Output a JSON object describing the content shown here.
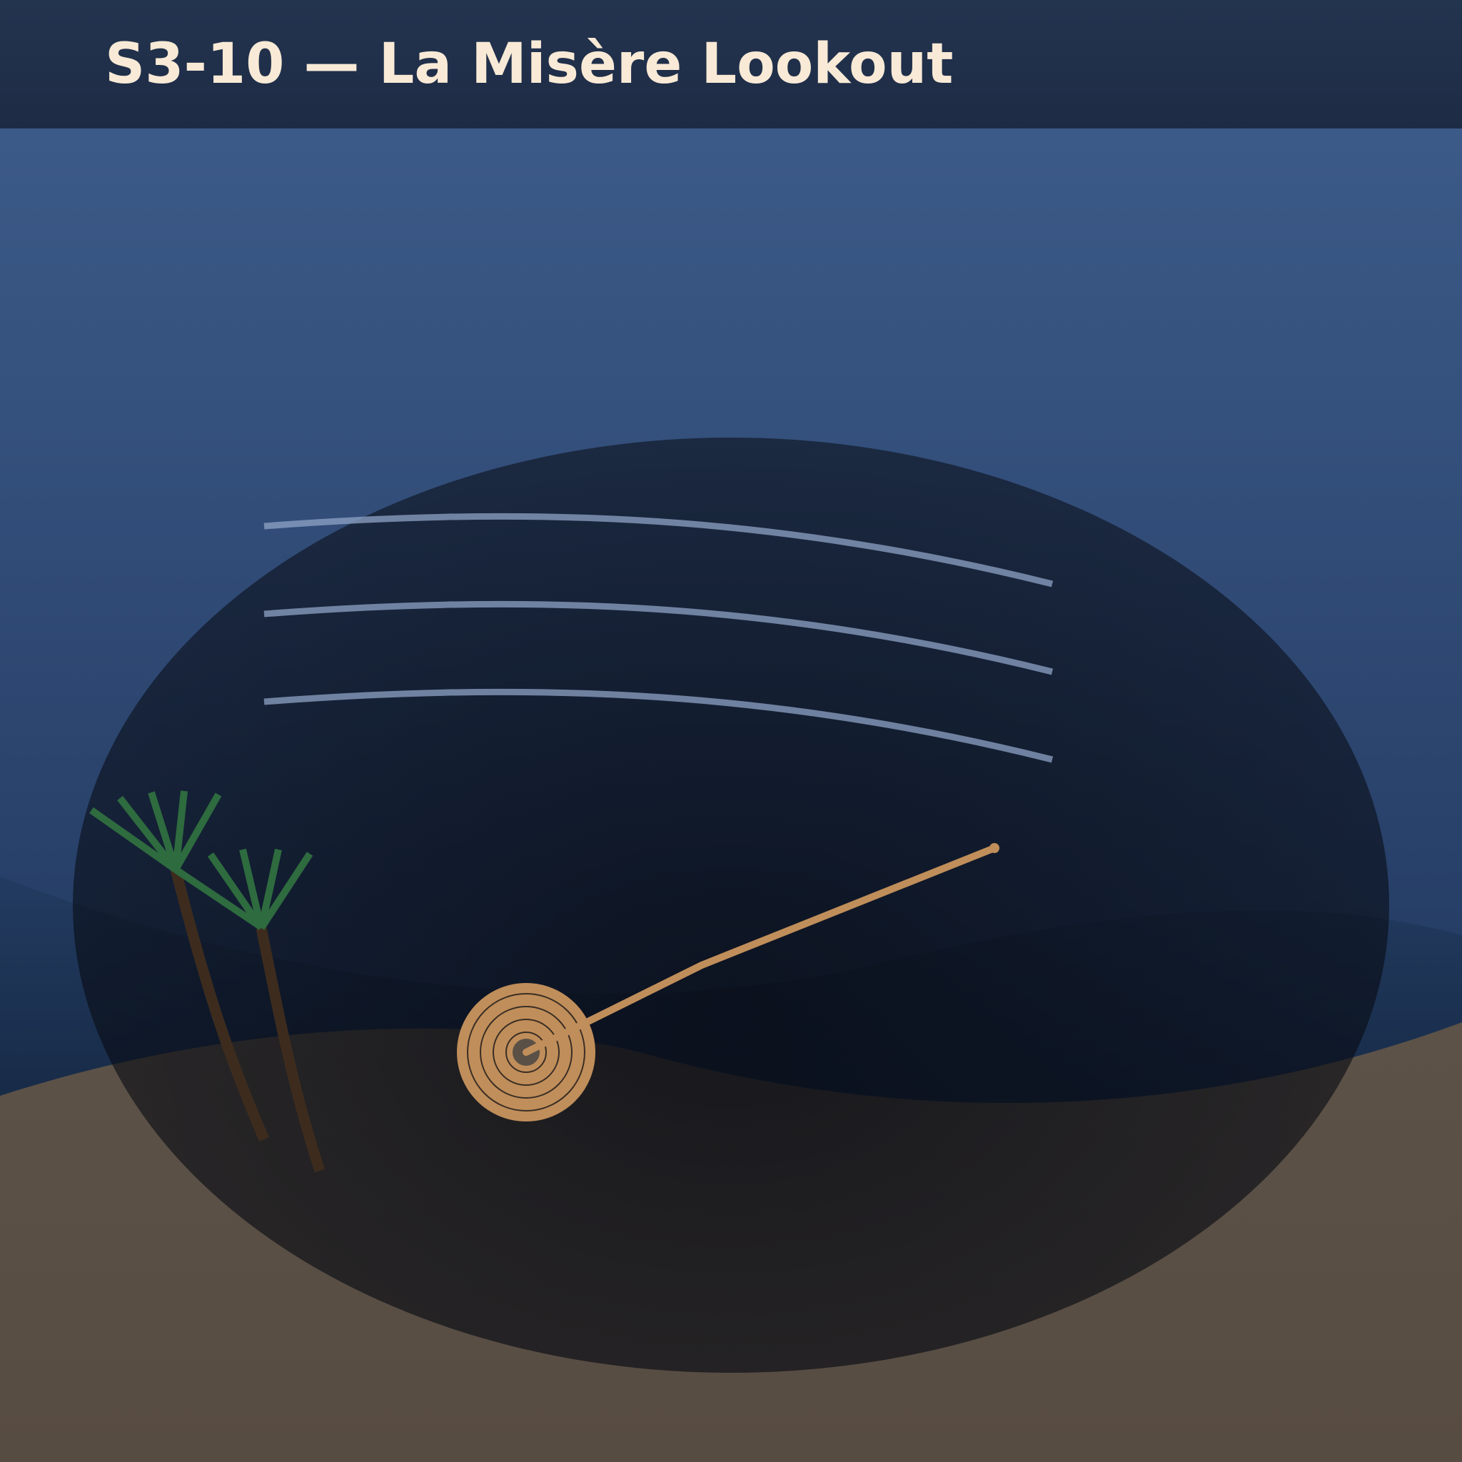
{
  "level": {
    "title": "S3-10 — La Misère Lookout"
  },
  "palette": {
    "sky_top": "#3c5a88",
    "sky_bottom": "#1f3558",
    "vignette": "#0a0f18",
    "wind_streak": "#8fa3c6",
    "water": "#1e3557",
    "sand": "#5a5046",
    "palm_trunk": "#3d2c1e",
    "palm_frond": "#2e6b3f",
    "rope": "#c08e5a",
    "title_text": "#f8ead6"
  },
  "icons": {
    "rope_coil": "rope-coil-icon",
    "palm_tree": "palm-tree-icon",
    "wind": "wind-streak-icon"
  }
}
